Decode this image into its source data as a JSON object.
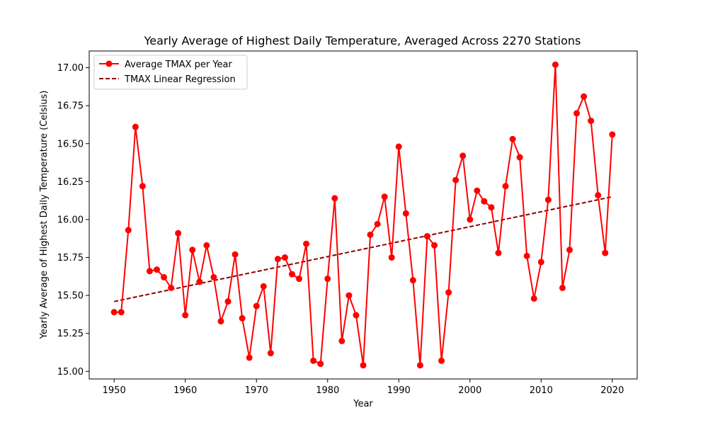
{
  "chart_data": {
    "type": "line",
    "title": "Yearly Average of Highest Daily Temperature, Averaged Across 2270 Stations",
    "xlabel": "Year",
    "ylabel": "Yearly Average of Highest Daily Temperature (Celsius)",
    "xlim": [
      1946.5,
      2023.5
    ],
    "ylim": [
      14.95,
      17.11
    ],
    "xticks": [
      1950,
      1960,
      1970,
      1980,
      1990,
      2000,
      2010,
      2020
    ],
    "xtick_labels": [
      "1950",
      "1960",
      "1970",
      "1980",
      "1990",
      "2000",
      "2010",
      "2020"
    ],
    "yticks": [
      15.0,
      15.25,
      15.5,
      15.75,
      16.0,
      16.25,
      16.5,
      16.75,
      17.0
    ],
    "ytick_labels": [
      "15.00",
      "15.25",
      "15.50",
      "15.75",
      "16.00",
      "16.25",
      "16.50",
      "16.75",
      "17.00"
    ],
    "grid": false,
    "legend_position": "top-left",
    "series": [
      {
        "name": "Average TMAX per Year",
        "style": "line-marker",
        "color": "#ff0000",
        "x": [
          1950,
          1951,
          1952,
          1953,
          1954,
          1955,
          1956,
          1957,
          1958,
          1959,
          1960,
          1961,
          1962,
          1963,
          1964,
          1965,
          1966,
          1967,
          1968,
          1969,
          1970,
          1971,
          1972,
          1973,
          1974,
          1975,
          1976,
          1977,
          1978,
          1979,
          1980,
          1981,
          1982,
          1983,
          1984,
          1985,
          1986,
          1987,
          1988,
          1989,
          1990,
          1991,
          1992,
          1993,
          1994,
          1995,
          1996,
          1997,
          1998,
          1999,
          2000,
          2001,
          2002,
          2003,
          2004,
          2005,
          2006,
          2007,
          2008,
          2009,
          2010,
          2011,
          2012,
          2013,
          2014,
          2015,
          2016,
          2017,
          2018,
          2019,
          2020
        ],
        "y": [
          15.39,
          15.39,
          15.93,
          16.61,
          16.22,
          15.66,
          15.67,
          15.62,
          15.55,
          15.91,
          15.37,
          15.8,
          15.59,
          15.83,
          15.62,
          15.33,
          15.46,
          15.77,
          15.35,
          15.09,
          15.43,
          15.56,
          15.12,
          15.74,
          15.75,
          15.64,
          15.61,
          15.84,
          15.07,
          15.05,
          15.61,
          16.14,
          15.2,
          15.5,
          15.37,
          15.04,
          15.9,
          15.97,
          16.15,
          15.75,
          16.48,
          16.04,
          15.6,
          15.04,
          15.89,
          15.83,
          15.07,
          15.52,
          16.26,
          16.42,
          16.0,
          16.19,
          16.12,
          16.08,
          15.78,
          16.22,
          16.53,
          16.41,
          15.76,
          15.48,
          15.72,
          16.13,
          17.02,
          15.55,
          15.8,
          16.7,
          16.81,
          16.65,
          16.16,
          15.78,
          16.56
        ]
      },
      {
        "name": "TMAX Linear Regression",
        "style": "dashed",
        "color": "#8b0000",
        "x": [
          1950,
          2020
        ],
        "y": [
          15.46,
          16.15
        ]
      }
    ]
  }
}
